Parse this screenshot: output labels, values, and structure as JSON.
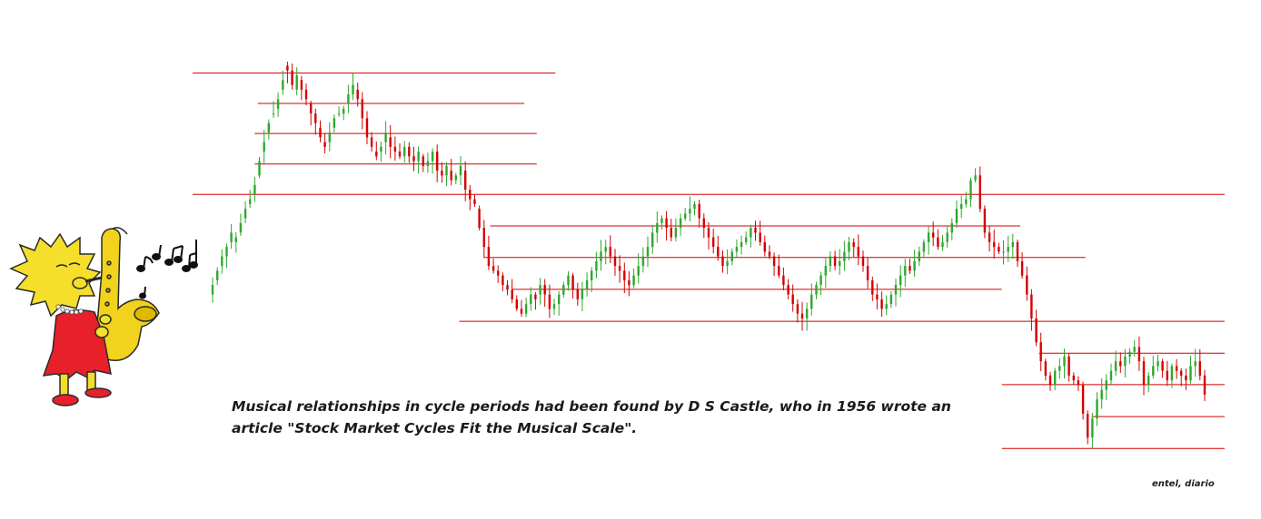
{
  "caption": {
    "line1": "Musical relationships in cycle periods had been found by D S Castle, who in 1956 wrote an",
    "line2": "article \"Stock Market Cycles Fit the Musical Scale\"."
  },
  "credit": "entel, diario",
  "colors": {
    "up_candle": "#2ea82e",
    "down_candle": "#d40000",
    "level_line": "#d40000"
  },
  "illustration": "saxophone-player-cartoon-with-music-notes",
  "chart_data": {
    "type": "candlestick",
    "grid": false,
    "axes_visible": false,
    "price_range": [
      1,
      100
    ],
    "levels": [
      {
        "price": 88.5,
        "from_bar": 0,
        "to_bar": 117
      },
      {
        "price": 82.1,
        "from_bar": 21,
        "to_bar": 107
      },
      {
        "price": 75.8,
        "from_bar": 20,
        "to_bar": 111
      },
      {
        "price": 69.4,
        "from_bar": 20,
        "to_bar": 111
      },
      {
        "price": 63.0,
        "from_bar": 0,
        "to_bar": 372
      },
      {
        "price": 56.4,
        "from_bar": 96,
        "to_bar": 267
      },
      {
        "price": 49.8,
        "from_bar": 94,
        "to_bar": 288
      },
      {
        "price": 43.1,
        "from_bar": 103,
        "to_bar": 261
      },
      {
        "price": 36.4,
        "from_bar": 86,
        "to_bar": 372
      },
      {
        "price": 29.7,
        "from_bar": 273,
        "to_bar": 336
      },
      {
        "price": 23.1,
        "from_bar": 261,
        "to_bar": 372
      },
      {
        "price": 16.4,
        "from_bar": 290,
        "to_bar": 352
      },
      {
        "price": 9.7,
        "from_bar": 261,
        "to_bar": 372
      }
    ],
    "closes": [
      44,
      47,
      50,
      52,
      55,
      54,
      57,
      60,
      62,
      65,
      70,
      74,
      78,
      80,
      83,
      87,
      89,
      86,
      88,
      85,
      83,
      80,
      78,
      75,
      73,
      76,
      79,
      80,
      81,
      84,
      86,
      83,
      79,
      75,
      73,
      71,
      73,
      76,
      73,
      72,
      71,
      73,
      71,
      70,
      72,
      69,
      70,
      72,
      68,
      67,
      69,
      66,
      67,
      69,
      64,
      62,
      61,
      56,
      52,
      48,
      47,
      46,
      44,
      43,
      41,
      39,
      38,
      40,
      42,
      41,
      44,
      42,
      39,
      40,
      42,
      44,
      46,
      43,
      41,
      43,
      45,
      47,
      49,
      51,
      52,
      50,
      48,
      47,
      45,
      44,
      46,
      48,
      50,
      52,
      55,
      57,
      58,
      56,
      54,
      56,
      58,
      59,
      60,
      61,
      58,
      56,
      54,
      52,
      50,
      48,
      49,
      51,
      52,
      53,
      54,
      56,
      55,
      53,
      51,
      50,
      48,
      46,
      44,
      42,
      40,
      38,
      37,
      39,
      42,
      44,
      46,
      48,
      50,
      48,
      49,
      51,
      53,
      52,
      50,
      48,
      45,
      42,
      41,
      39,
      40,
      42,
      44,
      46,
      48,
      47,
      49,
      51,
      53,
      55,
      54,
      52,
      53,
      55,
      57,
      60,
      61,
      62,
      66,
      67,
      60,
      55,
      53,
      52,
      51,
      51,
      52,
      53,
      49,
      46,
      42,
      37,
      32,
      28,
      25,
      23,
      26,
      27,
      29,
      25,
      24,
      23,
      17,
      12,
      16,
      20,
      22,
      24,
      26,
      28,
      27,
      29,
      30,
      31,
      28,
      23,
      25,
      27,
      28,
      26,
      24,
      27,
      26,
      25,
      24,
      27,
      28,
      25,
      21
    ],
    "opens": [
      42,
      45,
      48,
      50,
      53,
      53,
      55,
      58,
      61,
      63,
      67,
      72,
      76,
      80,
      81,
      85,
      90,
      89,
      85,
      87,
      85,
      82,
      80,
      77,
      74,
      74,
      77,
      80,
      80,
      82,
      84,
      85,
      83,
      79,
      75,
      72,
      72,
      74,
      75,
      73,
      72,
      71,
      73,
      71,
      70,
      71,
      69,
      70,
      72,
      68,
      67,
      68,
      66,
      67,
      68,
      64,
      62,
      60,
      56,
      52,
      48,
      47,
      46,
      44,
      43,
      41,
      39,
      38,
      40,
      42,
      42,
      44,
      42,
      39,
      40,
      42,
      44,
      46,
      43,
      41,
      43,
      45,
      47,
      49,
      51,
      52,
      50,
      48,
      47,
      45,
      44,
      46,
      48,
      50,
      52,
      55,
      57,
      58,
      56,
      54,
      56,
      58,
      59,
      60,
      61,
      58,
      56,
      54,
      52,
      50,
      48,
      49,
      51,
      52,
      53,
      54,
      56,
      55,
      53,
      51,
      50,
      48,
      46,
      44,
      42,
      40,
      38,
      37,
      39,
      42,
      44,
      46,
      48,
      50,
      48,
      49,
      51,
      53,
      52,
      50,
      48,
      45,
      42,
      41,
      39,
      40,
      42,
      44,
      46,
      48,
      47,
      49,
      51,
      53,
      55,
      54,
      52,
      53,
      55,
      57,
      60,
      61,
      62,
      66,
      67,
      60,
      55,
      53,
      52,
      51,
      51,
      52,
      53,
      49,
      46,
      42,
      37,
      32,
      28,
      25,
      23,
      26,
      27,
      29,
      25,
      24,
      23,
      17,
      12,
      16,
      20,
      22,
      24,
      26,
      28,
      27,
      29,
      30,
      31,
      28,
      23,
      25,
      27,
      28,
      26,
      24,
      27,
      26,
      25,
      24,
      27,
      28,
      25
    ]
  }
}
